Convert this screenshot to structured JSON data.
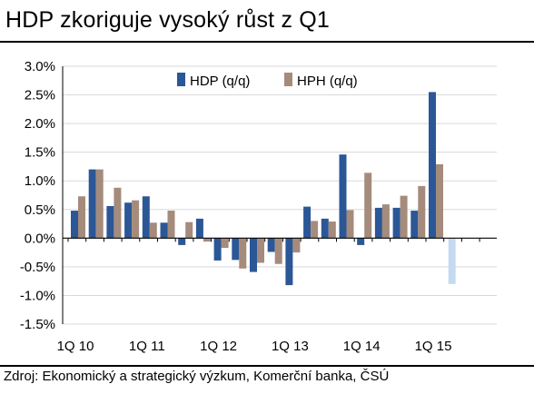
{
  "title": "HDP zkoriguje vysoký růst z Q1",
  "source": "Zdroj: Ekonomický a strategický výzkum, Komerční banka, ČSÚ",
  "chart_data": {
    "type": "bar",
    "ylim": [
      -1.5,
      3.0
    ],
    "yticks": [
      "-1.5%",
      "-1.0%",
      "-0.5%",
      "0.0%",
      "0.5%",
      "1.0%",
      "1.5%",
      "2.0%",
      "2.5%",
      "3.0%"
    ],
    "ytick_values": [
      -1.5,
      -1.0,
      -0.5,
      0.0,
      0.5,
      1.0,
      1.5,
      2.0,
      2.5,
      3.0
    ],
    "grid": true,
    "legend_position": "top",
    "categories": [
      "1Q 10",
      "2Q 10",
      "3Q 10",
      "4Q 10",
      "1Q 11",
      "2Q 11",
      "3Q 11",
      "4Q 11",
      "1Q 12",
      "2Q 12",
      "3Q 12",
      "4Q 12",
      "1Q 13",
      "2Q 13",
      "3Q 13",
      "4Q 13",
      "1Q 14",
      "2Q 14",
      "3Q 14",
      "4Q 14",
      "1Q 15",
      "2Q 15"
    ],
    "xtick_labels": [
      "1Q 10",
      "1Q 11",
      "1Q 12",
      "1Q 13",
      "1Q 14",
      "1Q 15"
    ],
    "xtick_index": [
      0,
      4,
      8,
      12,
      16,
      20
    ],
    "series": [
      {
        "name": "HDP (q/q)",
        "color": "#2b5797",
        "values": [
          0.48,
          1.2,
          0.56,
          0.62,
          0.73,
          0.27,
          -0.12,
          0.34,
          -0.39,
          -0.38,
          -0.59,
          -0.24,
          -0.82,
          0.55,
          0.34,
          1.46,
          -0.12,
          0.53,
          0.53,
          0.48,
          2.55,
          -0.8
        ]
      },
      {
        "name": "HPH (q/q)",
        "color": "#a58b7c",
        "values": [
          0.73,
          1.2,
          0.88,
          0.66,
          0.27,
          0.48,
          0.28,
          -0.06,
          -0.17,
          -0.53,
          -0.43,
          -0.45,
          -0.25,
          0.3,
          0.29,
          0.49,
          1.14,
          0.59,
          0.74,
          0.91,
          1.29,
          null
        ]
      }
    ],
    "highlighted_bar_color": "#c5daf1",
    "highlighted_index": 21
  }
}
